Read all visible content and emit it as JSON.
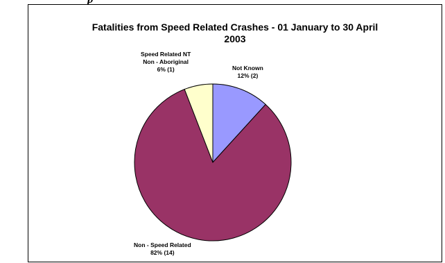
{
  "page": {
    "cropped_heading": "p"
  },
  "chart_data": {
    "type": "pie",
    "title_lines": [
      "Fatalities from Speed Related Crashes - 01 January to 30 April",
      "2003"
    ],
    "colors": {
      "not_known": "#9999ff",
      "non_speed_related": "#993366",
      "speed_related_nt_non_aboriginal": "#ffffcc",
      "edge": "#000000"
    },
    "slices": [
      {
        "key": "not_known",
        "label_lines": [
          "Not Known",
          "12% (2)"
        ],
        "value": 2,
        "percent": 12
      },
      {
        "key": "non_speed_related",
        "label_lines": [
          "Non - Speed Related",
          "82% (14)"
        ],
        "value": 14,
        "percent": 82
      },
      {
        "key": "speed_related_nt_non_aboriginal",
        "label_lines": [
          "Speed Related NT",
          "Non - Aboriginal",
          "6% (1)"
        ],
        "value": 1,
        "percent": 6
      }
    ]
  }
}
